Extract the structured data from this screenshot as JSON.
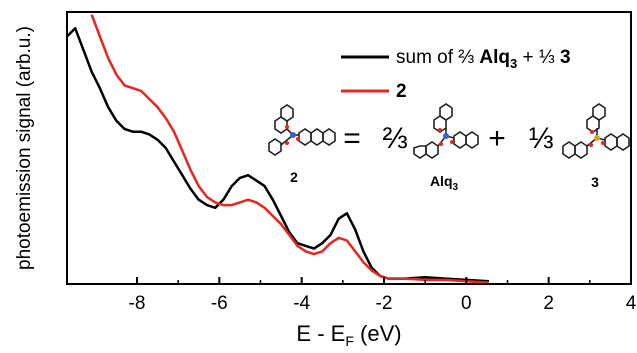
{
  "chart_data": {
    "type": "line",
    "xlabel_main": "E - E",
    "xlabel_sub": "F",
    "xlabel_unit": " (eV)",
    "ylabel": "photoemission signal (arb.u.)",
    "xlim": [
      -9.7,
      4
    ],
    "ylim": [
      0,
      1
    ],
    "xticks": [
      -8,
      -6,
      -4,
      -2,
      0,
      2,
      4
    ],
    "xtick_labels": [
      "-8",
      "-6",
      "-4",
      "-2",
      "0",
      "2",
      "4"
    ],
    "legend_position": "top-right",
    "series": [
      {
        "name": "sum of ⅔ Alq3 + ⅓ 3",
        "legend_parts": {
          "prefix": "sum of ⅔ ",
          "bold1": "Alq",
          "sub1": "3",
          "middle": " + ⅓ ",
          "bold2": "3"
        },
        "color": "#000000",
        "x": [
          -9.7,
          -9.5,
          -9.3,
          -9.1,
          -8.9,
          -8.7,
          -8.5,
          -8.3,
          -8.1,
          -7.9,
          -7.7,
          -7.5,
          -7.3,
          -7.1,
          -6.9,
          -6.7,
          -6.5,
          -6.3,
          -6.1,
          -5.9,
          -5.7,
          -5.5,
          -5.3,
          -5.1,
          -4.9,
          -4.7,
          -4.5,
          -4.3,
          -4.1,
          -3.9,
          -3.7,
          -3.5,
          -3.3,
          -3.1,
          -2.9,
          -2.7,
          -2.5,
          -2.3,
          -2.1,
          -1.9,
          -1.5,
          -1.0,
          -0.5,
          0.0,
          0.55
        ],
        "values": [
          0.91,
          0.94,
          0.86,
          0.78,
          0.72,
          0.65,
          0.6,
          0.57,
          0.56,
          0.56,
          0.55,
          0.53,
          0.5,
          0.45,
          0.4,
          0.35,
          0.31,
          0.29,
          0.28,
          0.31,
          0.36,
          0.39,
          0.4,
          0.38,
          0.36,
          0.31,
          0.25,
          0.19,
          0.15,
          0.14,
          0.13,
          0.15,
          0.18,
          0.24,
          0.26,
          0.2,
          0.12,
          0.06,
          0.03,
          0.02,
          0.02,
          0.025,
          0.02,
          0.015,
          0.01
        ]
      },
      {
        "name": "2",
        "legend_parts": {
          "prefix": "",
          "bold1": "2",
          "sub1": "",
          "middle": "",
          "bold2": ""
        },
        "color": "#e8251f",
        "x": [
          -9.1,
          -8.9,
          -8.7,
          -8.5,
          -8.3,
          -8.1,
          -7.9,
          -7.7,
          -7.5,
          -7.3,
          -7.1,
          -6.9,
          -6.7,
          -6.5,
          -6.3,
          -6.1,
          -5.9,
          -5.7,
          -5.5,
          -5.3,
          -5.1,
          -4.9,
          -4.7,
          -4.5,
          -4.3,
          -4.1,
          -3.9,
          -3.7,
          -3.5,
          -3.3,
          -3.1,
          -2.9,
          -2.7,
          -2.5,
          -2.3,
          -2.1,
          -1.9,
          -1.5,
          -1.0,
          -0.5,
          0.0,
          0.55
        ],
        "values": [
          0.99,
          0.91,
          0.83,
          0.77,
          0.73,
          0.72,
          0.71,
          0.68,
          0.65,
          0.61,
          0.56,
          0.49,
          0.42,
          0.36,
          0.32,
          0.3,
          0.29,
          0.29,
          0.3,
          0.31,
          0.3,
          0.28,
          0.25,
          0.22,
          0.18,
          0.14,
          0.12,
          0.11,
          0.12,
          0.15,
          0.17,
          0.16,
          0.12,
          0.08,
          0.05,
          0.03,
          0.02,
          0.02,
          0.015,
          0.015,
          0.01,
          0.005
        ]
      }
    ],
    "annotation": {
      "eq_sign": "=",
      "frac1": "⅔",
      "plus_sign": "+",
      "frac2": "⅓",
      "mol_labels": [
        {
          "text": "2",
          "sub": ""
        },
        {
          "text": "Alq",
          "sub": "3"
        },
        {
          "text": "3",
          "sub": ""
        }
      ]
    }
  }
}
